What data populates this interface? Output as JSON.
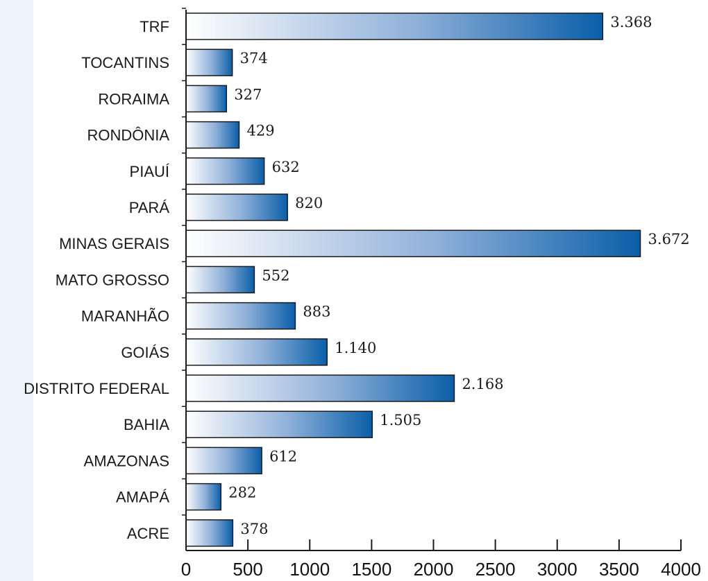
{
  "chart_data": {
    "type": "bar",
    "orientation": "horizontal",
    "categories": [
      "TRF",
      "TOCANTINS",
      "RORAIMA",
      "RONDÔNIA",
      "PIAUÍ",
      "PARÁ",
      "MINAS GERAIS",
      "MATO GROSSO",
      "MARANHÃO",
      "GOIÁS",
      "DISTRITO FEDERAL",
      "BAHIA",
      "AMAZONAS",
      "AMAPÁ",
      "ACRE"
    ],
    "values": [
      3368,
      374,
      327,
      429,
      632,
      820,
      3672,
      552,
      883,
      1140,
      2168,
      1505,
      612,
      282,
      378
    ],
    "value_labels": [
      "3.368",
      "374",
      "327",
      "429",
      "632",
      "820",
      "3.672",
      "552",
      "883",
      "1.140",
      "2.168",
      "1.505",
      "612",
      "282",
      "378"
    ],
    "xticks": [
      "0",
      "500",
      "1000",
      "1500",
      "2000",
      "2500",
      "3000",
      "3500",
      "4000"
    ],
    "xlim": [
      0,
      4000
    ],
    "title": "",
    "xlabel": "",
    "ylabel": "",
    "grid": false,
    "colors": {
      "bar_start": "#ffffff",
      "bar_mid": "#8fb0d9",
      "bar_end": "#0a5fa9",
      "bar_stroke": "#1b1b1b",
      "axis": "#1b1b1b"
    }
  }
}
